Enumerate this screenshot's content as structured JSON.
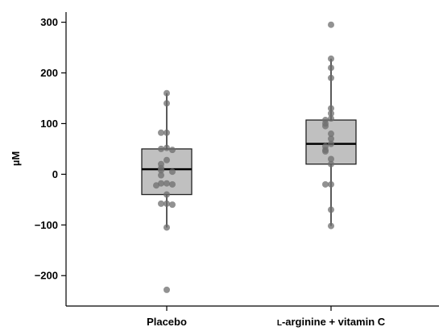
{
  "chart_data": {
    "type": "boxplot",
    "ylabel": "µM",
    "ylim": [
      -260,
      320
    ],
    "yticks": [
      300,
      200,
      100,
      0,
      -100,
      -200
    ],
    "ytick_labels": [
      "300",
      "200",
      "100",
      "0",
      "−100",
      "−200"
    ],
    "categories": [
      "Placebo",
      "L-arginine + vitamin C"
    ],
    "category_display": [
      {
        "prefix": "",
        "smallcaps": "",
        "rest": "Placebo"
      },
      {
        "prefix": "",
        "smallcaps": "L",
        "rest": "-arginine + vitamin C"
      }
    ],
    "grid": false,
    "legend": "none",
    "box_color": "#c0c0c0",
    "point_color": "#6e6e6e",
    "boxes": [
      {
        "name": "Placebo",
        "whisker_low": -105,
        "q1": -40,
        "median": 10,
        "q3": 50,
        "whisker_high": 160,
        "points": [
          160,
          140,
          82,
          82,
          52,
          50,
          48,
          28,
          20,
          12,
          8,
          5,
          -2,
          -18,
          -18,
          -20,
          -22,
          -40,
          -58,
          -58,
          -60,
          -105,
          -228
        ]
      },
      {
        "name": "L-arginine + vitamin C",
        "whisker_low": -102,
        "q1": 20,
        "median": 60,
        "q3": 107,
        "whisker_high": 228,
        "points": [
          295,
          228,
          210,
          190,
          130,
          120,
          110,
          107,
          100,
          95,
          80,
          70,
          60,
          55,
          48,
          45,
          30,
          20,
          -20,
          -20,
          -70,
          -102
        ]
      }
    ]
  }
}
